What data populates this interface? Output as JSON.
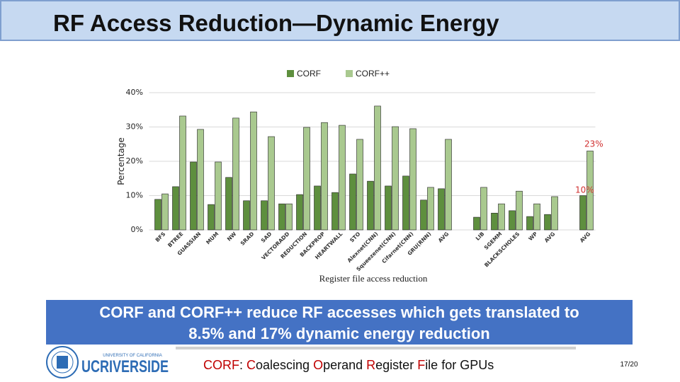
{
  "slide_title": "RF Access Reduction—Dynamic Energy",
  "chart_data": {
    "type": "bar",
    "y_axis_label": "Percentage",
    "x_axis_label": "Register file access reduction",
    "categories": [
      "BFS",
      "BTREE",
      "GUASSIAN",
      "MUM",
      "NW",
      "SRAD",
      "SAD",
      "VECTORADD",
      "REDUCTION",
      "BACKPROP",
      "HEARTWALL",
      "STO",
      "Alexnet(CNN)",
      "Squeezenet(CNN)",
      "Cifarnet(CNN)",
      "GRU(RNN)",
      "AVG",
      null,
      "LIB",
      "SGEMM",
      "BLACKSCHOLES",
      "WP",
      "AVG",
      null,
      "AVG"
    ],
    "series": [
      {
        "name": "CORF",
        "color": "#5e8f3e",
        "values": [
          8.9,
          12.6,
          19.8,
          7.4,
          15.3,
          8.5,
          8.5,
          7.6,
          10.3,
          12.8,
          10.9,
          16.3,
          14.2,
          12.8,
          15.7,
          8.7,
          12.0,
          null,
          3.7,
          4.9,
          5.6,
          3.9,
          4.5,
          null,
          10
        ]
      },
      {
        "name": "CORF++",
        "color": "#a9c98f",
        "values": [
          10.5,
          33.2,
          29.3,
          19.8,
          32.6,
          34.4,
          27.2,
          7.6,
          29.9,
          31.3,
          30.5,
          26.4,
          36.1,
          30.1,
          29.5,
          12.4,
          26.4,
          null,
          12.4,
          7.6,
          11.3,
          7.6,
          9.7,
          null,
          23
        ]
      }
    ],
    "annotations": [
      "23%",
      "10%"
    ],
    "ylim": [
      0,
      40
    ],
    "yticks": [
      {
        "value": 0,
        "label": "0%"
      },
      {
        "value": 10,
        "label": "10%"
      },
      {
        "value": 20,
        "label": "20%"
      },
      {
        "value": 30,
        "label": "30%"
      },
      {
        "value": 40,
        "label": "40%"
      }
    ],
    "grid": true,
    "legend": "top"
  },
  "callout": [
    "CORF and CORF++ reduce RF accesses which gets translated to",
    "8.5% and 17% dynamic energy reduction"
  ],
  "logo": {
    "top": "UNIVERSITY OF CALIFORNIA",
    "name": "UCRIVERSIDE"
  },
  "footer": [
    "CORF",
    ": ",
    "C",
    "oalescing ",
    "O",
    "perand ",
    "R",
    "egister ",
    "F",
    "ile for GPUs"
  ],
  "page_number": "17/20"
}
